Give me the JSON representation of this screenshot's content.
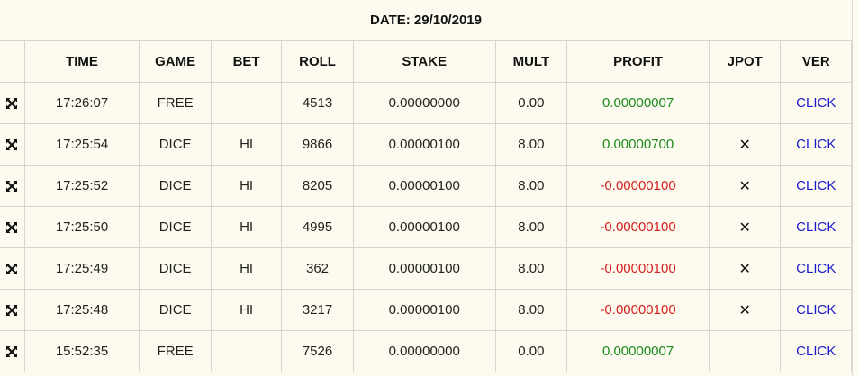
{
  "date_label": "DATE: 29/10/2019",
  "headers": [
    "TIME",
    "GAME",
    "BET",
    "ROLL",
    "STAKE",
    "MULT",
    "PROFIT",
    "JPOT",
    "VER"
  ],
  "rows": [
    {
      "time": "17:26:07",
      "game": "FREE",
      "bet": "",
      "roll": "4513",
      "stake": "0.00000000",
      "mult": "0.00",
      "profit": "0.00000007",
      "profit_sign": "pos",
      "jpot": "",
      "ver": "CLICK"
    },
    {
      "time": "17:25:54",
      "game": "DICE",
      "bet": "HI",
      "roll": "9866",
      "stake": "0.00000100",
      "mult": "8.00",
      "profit": "0.00000700",
      "profit_sign": "pos",
      "jpot": "✕",
      "ver": "CLICK"
    },
    {
      "time": "17:25:52",
      "game": "DICE",
      "bet": "HI",
      "roll": "8205",
      "stake": "0.00000100",
      "mult": "8.00",
      "profit": "-0.00000100",
      "profit_sign": "neg",
      "jpot": "✕",
      "ver": "CLICK"
    },
    {
      "time": "17:25:50",
      "game": "DICE",
      "bet": "HI",
      "roll": "4995",
      "stake": "0.00000100",
      "mult": "8.00",
      "profit": "-0.00000100",
      "profit_sign": "neg",
      "jpot": "✕",
      "ver": "CLICK"
    },
    {
      "time": "17:25:49",
      "game": "DICE",
      "bet": "HI",
      "roll": "362",
      "stake": "0.00000100",
      "mult": "8.00",
      "profit": "-0.00000100",
      "profit_sign": "neg",
      "jpot": "✕",
      "ver": "CLICK"
    },
    {
      "time": "17:25:48",
      "game": "DICE",
      "bet": "HI",
      "roll": "3217",
      "stake": "0.00000100",
      "mult": "8.00",
      "profit": "-0.00000100",
      "profit_sign": "neg",
      "jpot": "✕",
      "ver": "CLICK"
    },
    {
      "time": "15:52:35",
      "game": "FREE",
      "bet": "",
      "roll": "7526",
      "stake": "0.00000000",
      "mult": "0.00",
      "profit": "0.00000007",
      "profit_sign": "pos",
      "jpot": "",
      "ver": "CLICK"
    }
  ],
  "icons": {
    "row_expand": "expand-arrows-icon",
    "jackpot": "x-mark-icon"
  },
  "colors": {
    "background": "#fdfbef",
    "positive_profit": "#1a8a1a",
    "negative_profit": "#d42020",
    "link": "#1a1acc"
  }
}
